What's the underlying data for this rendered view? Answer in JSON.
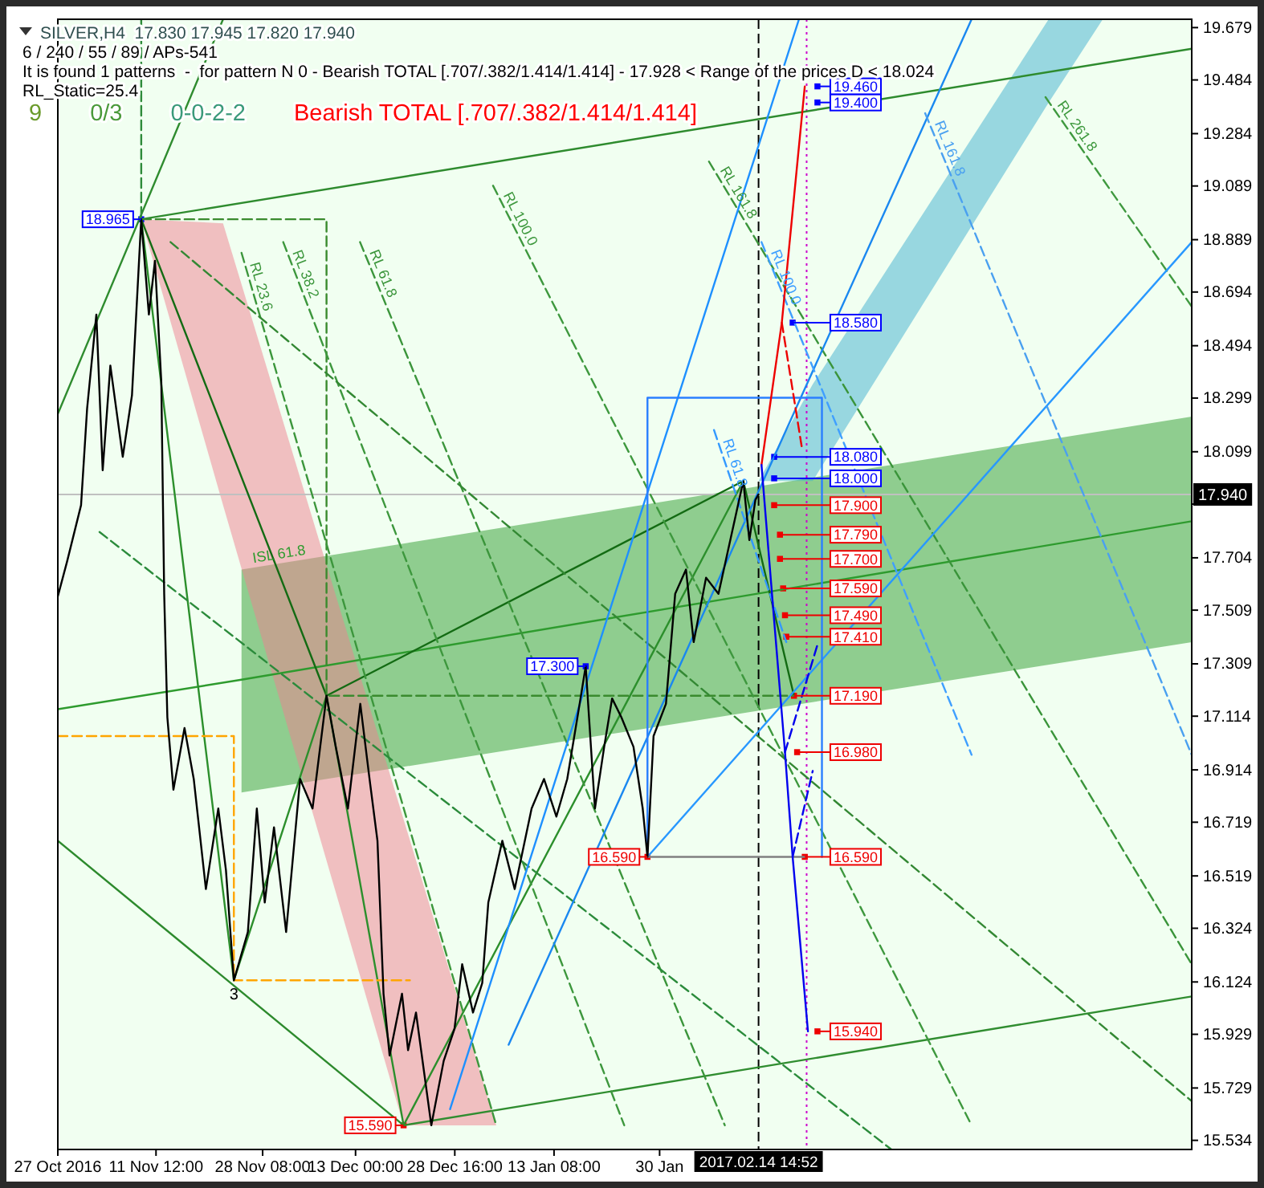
{
  "chart_data": {
    "type": "line",
    "title": "SILVER,H4  17.830 17.945 17.820 17.940",
    "annotations": [
      "6 / 240 / 55 / 89 / APs-541",
      "It is found 1 patterns  -  for pattern N 0 - Bearish TOTAL [.707/.382/1.414/1.414] - 17.928 < Range of the prices D < 18.024",
      "RL_Static=25.4",
      "9",
      "0/3",
      "0-0-2-2",
      "Bearish TOTAL [.707/.382/1.414/1.414]",
      {
        "text": "3",
        "x": "2016-11-23T19:00",
        "y": 16.13
      }
    ],
    "xlim": [
      "2016-10-27",
      "2017-04-24"
    ],
    "xticks": [
      {
        "value": "2016-10-27T00:00",
        "label": "27 Oct 2016"
      },
      {
        "value": "2016-11-11T12:00",
        "label": "11 Nov 12:00"
      },
      {
        "value": "2016-11-28T08:00",
        "label": "28 Nov 08:00"
      },
      {
        "value": "2016-12-13T00:00",
        "label": "13 Dec 00:00"
      },
      {
        "value": "2016-12-28T16:00",
        "label": "28 Dec 16:00"
      },
      {
        "value": "2017-01-13T08:00",
        "label": "13 Jan 08:00"
      },
      {
        "value": "2017-01-30T00:00",
        "label": "30 Jan"
      }
    ],
    "ylim": [
      15.5,
      19.71
    ],
    "yticks": [
      15.534,
      15.729,
      15.929,
      16.124,
      16.324,
      16.519,
      16.719,
      16.914,
      17.114,
      17.309,
      17.509,
      17.704,
      {
        "value": 17.904,
        "label": null
      },
      18.099,
      18.299,
      18.494,
      18.694,
      18.889,
      19.089,
      19.284,
      19.484,
      19.679
    ],
    "ref_lines": [
      {
        "axis": "y",
        "value": 17.94,
        "label": "17.940",
        "color": "#c0c0c0"
      },
      {
        "axis": "x",
        "value": "2017-02-14T14:52",
        "label": "2017.02.14 14:52",
        "color": "#000000",
        "line_style": "dashed"
      },
      {
        "axis": "x",
        "value": "2017-02-22T05:00",
        "color": "#cc00cc",
        "line_style": "dotted"
      }
    ],
    "series": [
      {
        "name": "ISL 61.8",
        "color": "#2e9b2e",
        "x": [
          "2016-10-27T00:00",
          "2016-11-25T00:00",
          "2017-04-24T00:00"
        ],
        "values": [
          17.14,
          17.25,
          17.84
        ],
        "lower": [
          null,
          16.83,
          17.39
        ],
        "upper": [
          null,
          17.66,
          18.23
        ]
      },
      {
        "color": "#f08090",
        "x": [
          "2016-11-09T04:00",
          "2016-11-22T02:00",
          "2016-12-20T14:00",
          "2017-01-04T05:00"
        ],
        "values": [
          null,
          null,
          null,
          null
        ],
        "lower": [
          18.965,
          17.9,
          15.59,
          15.59
        ],
        "upper": [
          18.965,
          18.95,
          16.73,
          15.59
        ]
      },
      {
        "color": "#40b0d0",
        "x": [
          "2017-02-14T15:00",
          "2017-02-23T04:00",
          "2017-04-01T10:00",
          "2017-04-09T23:00"
        ],
        "values": [
          null,
          null,
          null,
          null
        ],
        "lower": [
          17.99,
          17.99,
          19.4,
          19.71
        ],
        "upper": [
          17.99,
          18.35,
          19.71,
          19.71
        ]
      },
      {
        "color": "#2e8b2e",
        "x": [
          "2016-11-09T04:00",
          "2017-04-24T00:00"
        ],
        "values": [
          18.965,
          19.6
        ]
      },
      {
        "color": "#2f8c2f",
        "x": [
          "2016-10-27T00:00",
          "2016-11-22T02:00"
        ],
        "values": [
          18.24,
          19.71
        ]
      },
      {
        "color": "#2d8a2d",
        "x": [
          "2016-10-27T00:00",
          "2016-12-20T14:00"
        ],
        "values": [
          16.65,
          15.59
        ]
      },
      {
        "color": "#308d30",
        "x": [
          "2016-12-20T14:00",
          "2017-04-24T00:00"
        ],
        "values": [
          15.59,
          16.07
        ]
      },
      {
        "color": "#2c8f2c",
        "x": [
          "2016-11-09T04:00",
          "2016-11-23T19:00",
          "2016-12-08T10:00",
          "2016-12-20T14:00",
          "2017-02-12T05:00"
        ],
        "values": [
          18.965,
          16.13,
          17.19,
          15.59,
          17.99
        ]
      },
      {
        "color": "#136b13",
        "x": [
          "2016-11-09T04:00",
          "2016-12-08T10:00",
          "2017-02-12T05:00",
          "2017-02-20T05:00"
        ],
        "values": [
          18.965,
          17.19,
          17.99,
          17.19
        ]
      },
      {
        "color": "#2e8b3a",
        "line_style": "dashed",
        "x": [
          "2016-11-09T04:00",
          "2016-11-09T04:00"
        ],
        "values": [
          19.71,
          18.965
        ]
      },
      {
        "color": "#3a8b2e",
        "line_style": "dashed",
        "x": [
          "2016-11-09T04:00",
          "2016-12-08T10:00",
          "2016-12-08T10:00",
          "2017-02-20T05:00"
        ],
        "values": [
          18.965,
          18.965,
          17.19,
          17.19
        ]
      },
      {
        "color": "#ffa500",
        "line_style": "dashed",
        "x": [
          "2016-10-27T00:00",
          "2016-11-23T19:00",
          "2016-11-23T19:00",
          "2016-12-21T14:00"
        ],
        "values": [
          17.04,
          17.04,
          16.13,
          16.13
        ]
      },
      {
        "name": "RL 23.6",
        "color": "#3c963c",
        "line_style": "dashed",
        "x": [
          "2016-11-25T00:00",
          "2017-01-04T05:00"
        ],
        "values": [
          18.84,
          15.59
        ]
      },
      {
        "name": "RL 38.2",
        "color": "#3d973d",
        "line_style": "dashed",
        "x": [
          "2016-12-01T14:00",
          "2017-01-24T10:00"
        ],
        "values": [
          18.88,
          15.59
        ]
      },
      {
        "name": "RL 61.8",
        "color": "#3b953b",
        "line_style": "dashed",
        "x": [
          "2016-12-13T17:00",
          "2017-02-09T07:00"
        ],
        "values": [
          18.88,
          15.59
        ]
      },
      {
        "name": "RL 100.0",
        "color": "#3e983e",
        "line_style": "dashed",
        "x": [
          "2017-01-03T17:00",
          "2017-03-20T06:00"
        ],
        "values": [
          19.09,
          15.59
        ]
      },
      {
        "name": "RL 161.8",
        "color": "#3a943a",
        "line_style": "dashed",
        "x": [
          "2017-02-06T19:00",
          "2017-04-24T00:00"
        ],
        "values": [
          19.18,
          16.19
        ]
      },
      {
        "name": "RL 261.8",
        "color": "#3f993f",
        "line_style": "dashed",
        "x": [
          "2017-03-31T22:00",
          "2017-04-24T00:00"
        ],
        "values": [
          19.42,
          18.64
        ]
      },
      {
        "color": "#338833",
        "line_style": "dashed",
        "x": [
          "2016-11-13T19:00",
          "2017-04-24T00:00"
        ],
        "values": [
          18.88,
          15.68
        ]
      },
      {
        "color": "#2b8b3b",
        "line_style": "dashed",
        "x": [
          "2016-11-02T14:00",
          "2017-03-07T14:00"
        ],
        "values": [
          17.8,
          15.5
        ]
      },
      {
        "color": "#1e90ff",
        "x": [
          "2016-12-27T22:00",
          "2017-02-21T00:00"
        ],
        "values": [
          15.65,
          19.71
        ]
      },
      {
        "color": "#1a88f0",
        "x": [
          "2017-01-06T04:00",
          "2017-03-20T06:00"
        ],
        "values": [
          15.89,
          19.71
        ]
      },
      {
        "color": "#2898ff",
        "x": [
          "2017-01-28T02:00",
          "2017-04-24T00:00"
        ],
        "values": [
          16.59,
          18.88
        ]
      },
      {
        "color": "#2a7fff",
        "x": [
          "2017-01-28T02:00",
          "2017-01-28T02:00",
          "2017-02-24T15:00",
          "2017-02-24T15:00"
        ],
        "values": [
          16.59,
          18.3,
          18.3,
          16.59
        ]
      },
      {
        "color": "#808080",
        "x": [
          "2017-01-28T02:00",
          "2017-02-21T22:00"
        ],
        "values": [
          16.59,
          16.59
        ]
      },
      {
        "name": "RL 61.8",
        "color": "#3399ff",
        "line_style": "dashed",
        "x": [
          "2017-02-07T14:00",
          "2017-02-19T00:00"
        ],
        "values": [
          18.18,
          17.39
        ]
      },
      {
        "name": "RL 100.0",
        "color": "#3f9fff",
        "line_style": "dashed",
        "x": [
          "2017-02-15T02:00",
          "2017-03-20T06:00"
        ],
        "values": [
          18.88,
          16.97
        ]
      },
      {
        "name": "RL 161.8",
        "color": "#4aa0f0",
        "line_style": "dashed",
        "x": [
          "2017-03-12T22:00",
          "2017-04-24T00:00"
        ],
        "values": [
          19.36,
          16.97
        ]
      },
      {
        "color": "#ee0000",
        "x": [
          "2017-02-15T02:00",
          "2017-02-18T07:00",
          "2017-02-21T22:00"
        ],
        "values": [
          18.05,
          18.58,
          19.46
        ]
      },
      {
        "color": "#ec0000",
        "line_style": "dashed",
        "x": [
          "2017-02-18T07:00",
          "2017-02-21T10:00"
        ],
        "values": [
          18.58,
          18.12
        ]
      },
      {
        "color": "#0000ee",
        "x": [
          "2017-02-15T02:00",
          "2017-02-17T02:00",
          "2017-02-18T19:00",
          "2017-02-20T00:00",
          "2017-02-22T10:00"
        ],
        "values": [
          18.05,
          17.47,
          16.98,
          16.59,
          15.94
        ]
      },
      {
        "color": "#0000ec",
        "line_style": "dashed",
        "x": [
          "2017-02-18T19:00",
          "2017-02-23T22:00"
        ],
        "values": [
          16.98,
          17.38
        ]
      },
      {
        "color": "#0202ee",
        "line_style": "dashed",
        "x": [
          "2017-02-20T00:00",
          "2017-02-23T04:00"
        ],
        "values": [
          16.59,
          16.91
        ]
      },
      {
        "color": "#000000",
        "x": [
          "2016-10-27T00:00",
          "2016-10-28T11:00",
          "2016-10-30T16:00",
          "2016-10-31T15:00",
          "2016-11-02T02:00",
          "2016-11-03T02:00",
          "2016-11-04T07:00",
          "2016-11-06T06:00",
          "2016-11-07T17:00",
          "2016-11-09T04:00",
          "2016-11-10T09:00",
          "2016-11-11T08:00",
          "2016-11-12T08:00",
          "2016-11-12T19:00",
          "2016-11-13T07:00",
          "2016-11-14T06:00",
          "2016-11-16T00:00",
          "2016-11-17T11:00",
          "2016-11-19T09:00",
          "2016-11-21T08:00",
          "2016-11-22T13:00",
          "2016-11-23T19:00",
          "2016-11-26T00:00",
          "2016-11-27T10:00",
          "2016-11-28T16:00",
          "2016-11-30T03:00",
          "2016-12-02T01:00",
          "2016-12-04T06:00",
          "2016-12-06T05:00",
          "2016-12-08T10:00",
          "2016-12-09T21:00",
          "2016-12-11T19:00",
          "2016-12-13T18:00",
          "2016-12-15T05:00",
          "2016-12-16T11:00",
          "2016-12-17T10:00",
          "2016-12-18T09:00",
          "2016-12-20T08:00",
          "2016-12-21T07:00",
          "2016-12-22T13:00",
          "2016-12-24T23:00",
          "2016-12-26T22:00",
          "2016-12-28T15:00",
          "2016-12-29T20:00",
          "2016-12-31T13:00",
          "2017-01-02T00:00",
          "2017-01-02T23:00",
          "2017-01-05T04:00",
          "2017-01-07T03:00",
          "2017-01-09T19:00",
          "2017-01-11T18:00",
          "2017-01-13T17:00",
          "2017-01-15T10:00",
          "2017-01-17T09:00",
          "2017-01-18T08:00",
          "2017-01-19T19:00",
          "2017-01-21T06:00",
          "2017-01-22T12:00",
          "2017-01-23T23:00",
          "2017-01-25T21:00",
          "2017-01-27T08:00",
          "2017-01-28T02:00",
          "2017-01-29T01:00",
          "2017-01-31T00:00",
          "2017-02-01T11:00",
          "2017-02-03T04:00",
          "2017-02-04T09:00",
          "2017-02-06T08:00",
          "2017-02-08T07:00",
          "2017-02-10T06:00",
          "2017-02-12T05:00",
          "2017-02-13T04:00",
          "2017-02-14T03:00",
          "2017-02-14T14:52"
        ],
        "values": [
          17.56,
          17.69,
          17.9,
          18.26,
          18.61,
          18.03,
          18.42,
          18.08,
          18.31,
          18.965,
          18.61,
          18.81,
          18.36,
          17.57,
          17.11,
          16.84,
          17.07,
          16.88,
          16.47,
          16.77,
          16.54,
          16.13,
          16.31,
          16.77,
          16.42,
          16.7,
          16.31,
          16.88,
          16.77,
          17.19,
          17.0,
          16.77,
          17.16,
          16.88,
          16.65,
          16.08,
          15.85,
          16.08,
          15.87,
          16.01,
          15.59,
          15.83,
          15.95,
          16.19,
          16.01,
          16.12,
          16.42,
          16.65,
          16.47,
          16.77,
          16.88,
          16.74,
          16.88,
          17.16,
          17.3,
          16.77,
          17.0,
          17.18,
          17.11,
          17.0,
          16.77,
          16.59,
          17.04,
          17.16,
          17.57,
          17.66,
          17.39,
          17.63,
          17.57,
          17.78,
          17.99,
          17.77,
          17.92,
          17.94
        ]
      },
      {
        "type": "scatter",
        "color": "#0000ff",
        "marker": "square",
        "x": [
          "2016-11-09T04:00",
          "2017-01-18T08:00",
          "2017-02-23T22:00",
          "2017-02-23T22:00",
          "2017-02-20T00:00",
          "2017-02-17T02:00",
          "2017-02-17T02:00"
        ],
        "values": [
          18.965,
          17.3,
          19.46,
          19.4,
          18.58,
          18.08,
          18.0
        ],
        "value_labels": [
          "18.965",
          "17.300",
          "19.460",
          "19.400",
          "18.580",
          "18.080",
          "18.000"
        ]
      },
      {
        "type": "scatter",
        "color": "#ee0000",
        "marker": "square",
        "x": [
          "2016-12-20T14:00",
          "2017-01-28T02:00",
          "2017-02-17T02:00",
          "2017-02-18T00:00",
          "2017-02-18T00:00",
          "2017-02-18T12:00",
          "2017-02-18T19:00",
          "2017-02-19T00:00",
          "2017-02-20T05:00",
          "2017-02-20T17:00",
          "2017-02-21T22:00",
          "2017-02-23T22:00"
        ],
        "values": [
          15.59,
          16.59,
          17.9,
          17.79,
          17.7,
          17.59,
          17.49,
          17.41,
          17.19,
          16.98,
          16.59,
          15.94
        ],
        "value_labels": [
          "15.590",
          "16.590",
          "17.900",
          "17.790",
          "17.700",
          "17.590",
          "17.490",
          "17.410",
          "17.190",
          "16.980",
          "16.590",
          "15.940"
        ]
      }
    ]
  }
}
